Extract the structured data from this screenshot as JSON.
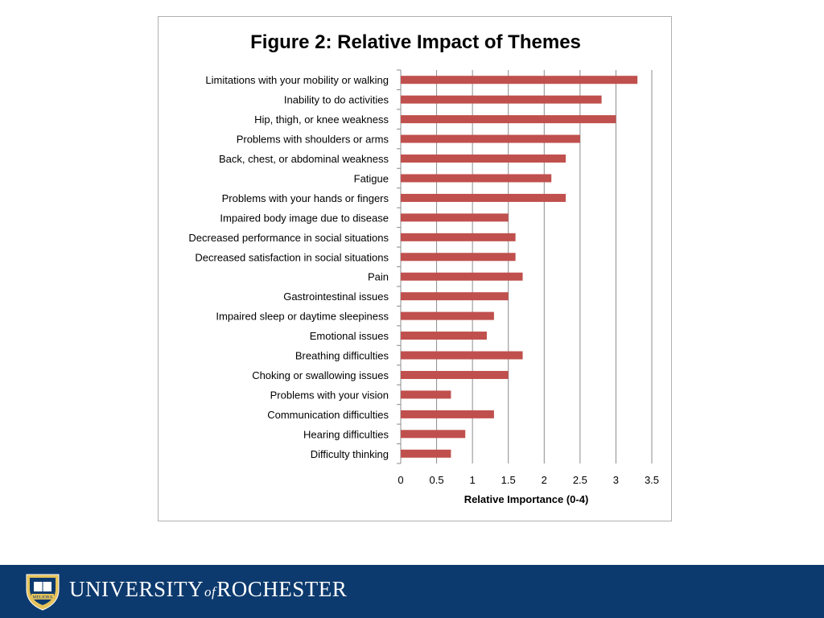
{
  "chart_data": {
    "type": "bar",
    "orientation": "horizontal",
    "title": "Figure 2: Relative Impact of Themes",
    "xlabel": "Relative Importance (0-4)",
    "ylabel": "",
    "xlim": [
      0,
      3.5
    ],
    "x_ticks": [
      "0",
      "0.5",
      "1",
      "1.5",
      "2",
      "2.5",
      "3",
      "3.5"
    ],
    "grid": true,
    "legend": "none",
    "bar_color": "#c0504d",
    "categories": [
      "Limitations with your mobility or walking",
      "Inability to do activities",
      "Hip, thigh, or knee weakness",
      "Problems with shoulders or arms",
      "Back, chest, or abdominal weakness",
      "Fatigue",
      "Problems with your hands or fingers",
      "Impaired body image due to disease",
      "Decreased performance in social situations",
      "Decreased satisfaction in social situations",
      "Pain",
      "Gastrointestinal issues",
      "Impaired sleep or daytime sleepiness",
      "Emotional issues",
      "Breathing difficulties",
      "Choking or swallowing issues",
      "Problems with your vision",
      "Communication difficulties",
      "Hearing difficulties",
      "Difficulty thinking"
    ],
    "values": [
      3.3,
      2.8,
      3.0,
      2.5,
      2.3,
      2.1,
      2.3,
      1.5,
      1.6,
      1.6,
      1.7,
      1.5,
      1.3,
      1.2,
      1.7,
      1.5,
      0.7,
      1.3,
      0.9,
      0.7
    ]
  },
  "footer": {
    "university_part1": "UNIVERSITY",
    "university_of": "of",
    "university_part2": "ROCHESTER",
    "seal_text": "MELIORA",
    "background_color": "#0d3a6e",
    "seal_color": "#e6c35a"
  }
}
